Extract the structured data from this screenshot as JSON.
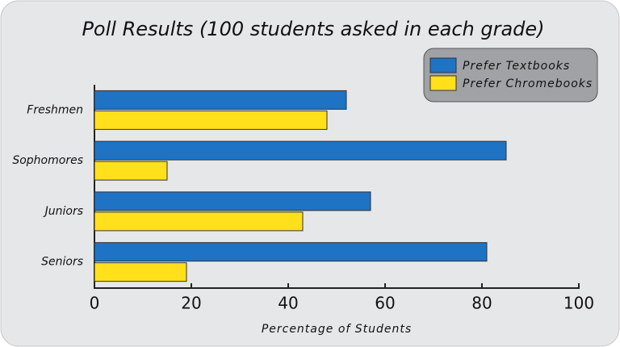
{
  "chart_data": {
    "type": "bar",
    "orientation": "horizontal",
    "title": "Poll Results (100 students asked in each grade)",
    "x_label": "Percentage of Students",
    "categories": [
      "Freshmen",
      "Sophomores",
      "Juniors",
      "Seniors"
    ],
    "series": [
      {
        "name": "Prefer Textbooks",
        "color": "#1f73c4",
        "values": [
          52,
          85,
          57,
          81
        ]
      },
      {
        "name": "Prefer Chromebooks",
        "color": "#ffe01b",
        "values": [
          48,
          15,
          43,
          19
        ]
      }
    ],
    "xlim": [
      0,
      100
    ],
    "xticks": [
      0,
      20,
      40,
      60,
      80,
      100
    ],
    "grid": false,
    "legend": "upper right"
  }
}
